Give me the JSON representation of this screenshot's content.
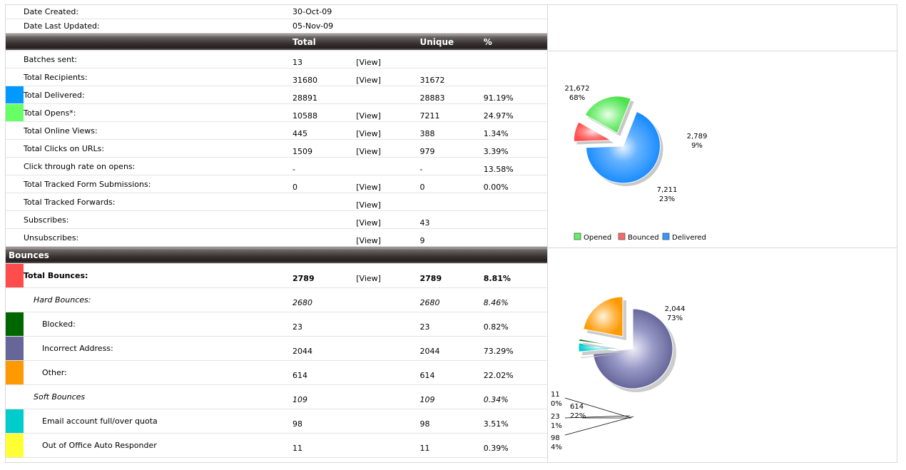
{
  "info": {
    "date_created_label": "Date Created:",
    "date_created": "30-Oct-09",
    "date_updated_label": "Date Last Updated:",
    "date_updated": "05-Nov-09"
  },
  "header": {
    "total": "Total",
    "unique": "Unique",
    "percent": "%"
  },
  "view_label": "[View]",
  "rows": [
    {
      "label": "Batches sent:",
      "total": "13",
      "view": "[View]",
      "unique": "",
      "pct": "",
      "color": ""
    },
    {
      "label": "Total Recipients:",
      "total": "31680",
      "view": "[View]",
      "unique": "31672",
      "pct": "",
      "color": ""
    },
    {
      "label": "Total Delivered:",
      "total": "28891",
      "view": "",
      "unique": "28883",
      "pct": "91.19%",
      "color": "#0099ff"
    },
    {
      "label": "Total Opens*:",
      "total": "10588",
      "view": "[View]",
      "unique": "7211",
      "pct": "24.97%",
      "color": "#66ff66"
    },
    {
      "label": "Total Online Views:",
      "total": "445",
      "view": "[View]",
      "unique": "388",
      "pct": "1.34%",
      "color": ""
    },
    {
      "label": "Total Clicks on URLs:",
      "total": "1509",
      "view": "[View]",
      "unique": "979",
      "pct": "3.39%",
      "color": ""
    },
    {
      "label": "Click through rate on opens:",
      "total": "-",
      "view": "",
      "unique": "-",
      "pct": "13.58%",
      "color": ""
    },
    {
      "label": "Total Tracked Form Submissions:",
      "total": "0",
      "view": "[View]",
      "unique": "0",
      "pct": "0.00%",
      "color": ""
    },
    {
      "label": "Total Tracked Forwards:",
      "total": "",
      "view": "[View]",
      "unique": "",
      "pct": "",
      "color": ""
    },
    {
      "label": "Subscribes:",
      "total": "",
      "view": "[View]",
      "unique": "43",
      "pct": "",
      "color": ""
    },
    {
      "label": "Unsubscribes:",
      "total": "",
      "view": "[View]",
      "unique": "9",
      "pct": "",
      "color": ""
    }
  ],
  "bounces": {
    "title": "Bounces",
    "rows": [
      {
        "label": "Total Bounces:",
        "total": "2789",
        "view": "[View]",
        "unique": "2789",
        "pct": "8.81%",
        "color": "#ff4d4d",
        "style": "bold",
        "indent": 0
      },
      {
        "label": "Hard Bounces:",
        "total": "2680",
        "view": "",
        "unique": "2680",
        "pct": "8.46%",
        "color": "",
        "style": "italic",
        "indent": 1
      },
      {
        "label": "Blocked:",
        "total": "23",
        "view": "",
        "unique": "23",
        "pct": "0.82%",
        "color": "#006600",
        "style": "",
        "indent": 2
      },
      {
        "label": "Incorrect Address:",
        "total": "2044",
        "view": "",
        "unique": "2044",
        "pct": "73.29%",
        "color": "#666699",
        "style": "",
        "indent": 2
      },
      {
        "label": "Other:",
        "total": "614",
        "view": "",
        "unique": "614",
        "pct": "22.02%",
        "color": "#ff9900",
        "style": "",
        "indent": 2
      },
      {
        "label": "Soft Bounces",
        "total": "109",
        "view": "",
        "unique": "109",
        "pct": "0.34%",
        "color": "",
        "style": "italic",
        "indent": 1
      },
      {
        "label": "Email account full/over quota",
        "total": "98",
        "view": "",
        "unique": "98",
        "pct": "3.51%",
        "color": "#00cccc",
        "style": "",
        "indent": 2
      },
      {
        "label": "Out of Office Auto Responder",
        "total": "11",
        "view": "",
        "unique": "11",
        "pct": "0.39%",
        "color": "#ffff33",
        "style": "",
        "indent": 2
      }
    ]
  },
  "chart_data": [
    {
      "type": "pie",
      "title": "",
      "legend_position": "bottom",
      "slices": [
        {
          "name": "Delivered",
          "value": 21672,
          "label": "21,672",
          "pct_label": "68%",
          "color": "#3399ff"
        },
        {
          "name": "Bounced",
          "value": 2789,
          "label": "2,789",
          "pct_label": "9%",
          "color": "#ff6666"
        },
        {
          "name": "Opened",
          "value": 7211,
          "label": "7,211",
          "pct_label": "23%",
          "color": "#66ee66"
        }
      ],
      "legend": [
        {
          "name": "Opened",
          "color": "#66ee66"
        },
        {
          "name": "Bounced",
          "color": "#ff6666"
        },
        {
          "name": "Delivered",
          "color": "#3399ff"
        }
      ]
    },
    {
      "type": "pie",
      "title": "",
      "slices": [
        {
          "name": "Incorrect Address",
          "value": 2044,
          "label": "2,044",
          "pct_label": "73%",
          "color": "#7777aa"
        },
        {
          "name": "Out of Office Auto Responder",
          "value": 11,
          "label": "11",
          "pct_label": "0%",
          "color": "#ffff33"
        },
        {
          "name": "Email account full/over quota",
          "value": 98,
          "label": "98",
          "pct_label": "4%",
          "color": "#00cccc"
        },
        {
          "name": "Blocked",
          "value": 23,
          "label": "23",
          "pct_label": "1%",
          "color": "#006600"
        },
        {
          "name": "Other",
          "value": 614,
          "label": "614",
          "pct_label": "22%",
          "color": "#ff9900"
        }
      ]
    }
  ]
}
